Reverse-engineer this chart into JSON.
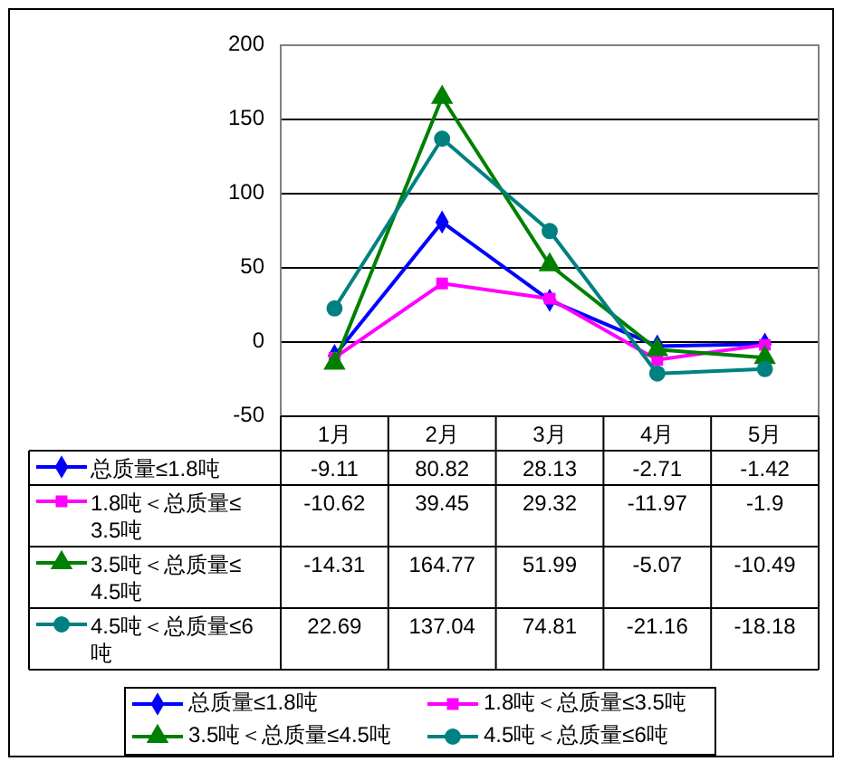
{
  "chart_data": {
    "type": "line",
    "categories": [
      "1月",
      "2月",
      "3月",
      "4月",
      "5月"
    ],
    "series": [
      {
        "name": "总质量≤1.8吨",
        "color": "#0000ff",
        "marker": "diamond",
        "values": [
          -9.11,
          80.82,
          28.13,
          -2.71,
          -1.42
        ]
      },
      {
        "name": "1.8吨＜总质量≤3.5吨",
        "color": "#ff00ff",
        "marker": "square",
        "values": [
          -10.62,
          39.45,
          29.32,
          -11.97,
          -1.9
        ]
      },
      {
        "name": "3.5吨＜总质量≤4.5吨",
        "color": "#008000",
        "marker": "triangle",
        "values": [
          -14.31,
          164.77,
          51.99,
          -5.07,
          -10.49
        ]
      },
      {
        "name": "4.5吨＜总质量≤6吨",
        "color": "#008080",
        "marker": "circle",
        "values": [
          22.69,
          137.04,
          74.81,
          -21.16,
          -18.18
        ]
      }
    ],
    "ylim": [
      -50,
      200
    ],
    "yticks": [
      -50,
      0,
      50,
      100,
      150,
      200
    ],
    "grid": "y",
    "legend": "bottom",
    "data_labels": true,
    "line_style": "solid"
  }
}
